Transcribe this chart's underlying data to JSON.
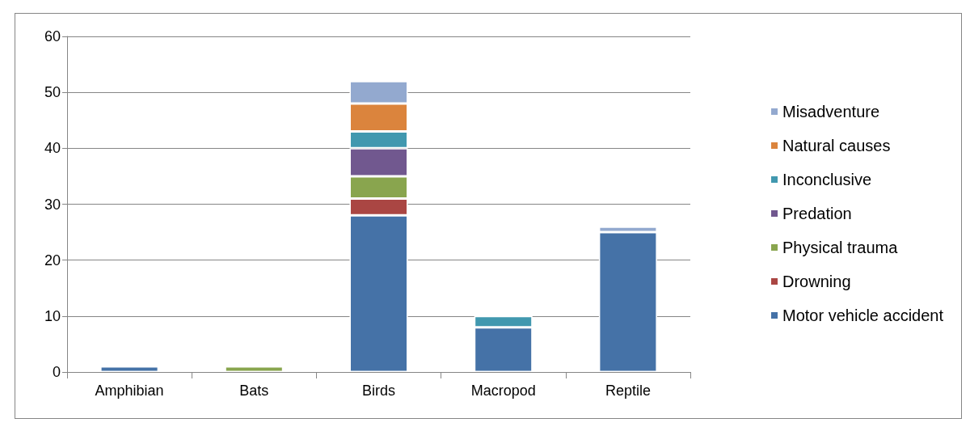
{
  "chart_data": {
    "type": "bar",
    "stacked": true,
    "categories": [
      "Amphibian",
      "Bats",
      "Birds",
      "Macropod",
      "Reptile"
    ],
    "series": [
      {
        "name": "Motor vehicle accident",
        "color": "#4572a7",
        "values": [
          1,
          0,
          28,
          8,
          25
        ]
      },
      {
        "name": "Drowning",
        "color": "#aa4643",
        "values": [
          0,
          0,
          3,
          0,
          0
        ]
      },
      {
        "name": "Physical trauma",
        "color": "#89a54e",
        "values": [
          0,
          1,
          4,
          0,
          0
        ]
      },
      {
        "name": "Predation",
        "color": "#71588f",
        "values": [
          0,
          0,
          5,
          0,
          0
        ]
      },
      {
        "name": "Inconclusive",
        "color": "#4198af",
        "values": [
          0,
          0,
          3,
          2,
          0
        ]
      },
      {
        "name": "Natural causes",
        "color": "#db843d",
        "values": [
          0,
          0,
          5,
          0,
          0
        ]
      },
      {
        "name": "Misadventure",
        "color": "#93a9cf",
        "values": [
          0,
          0,
          4,
          0,
          1
        ]
      }
    ],
    "ylim": [
      0,
      60
    ],
    "yticks": [
      0,
      10,
      20,
      30,
      40,
      50,
      60
    ],
    "grid": "y",
    "legend": "right"
  }
}
